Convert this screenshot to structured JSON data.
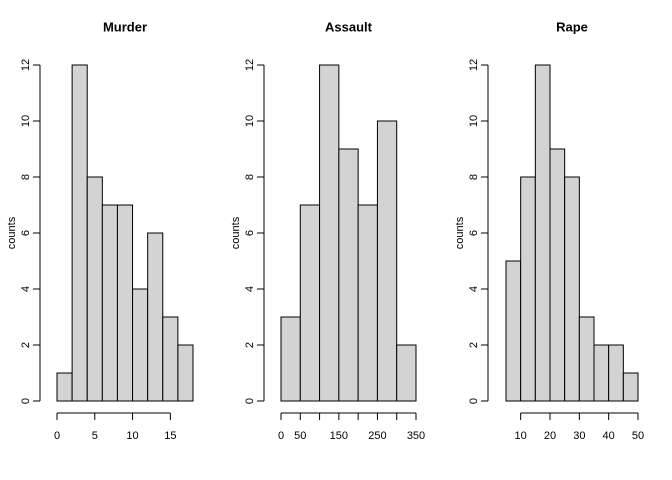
{
  "chart_data": [
    {
      "type": "histogram",
      "title": "Murder",
      "ylabel": "counts",
      "color": "#d3d3d3",
      "bins": [
        0,
        2,
        4,
        6,
        8,
        10,
        12,
        14,
        16,
        18
      ],
      "values": [
        1,
        12,
        8,
        7,
        7,
        4,
        6,
        3,
        2
      ],
      "xlim": [
        0,
        18
      ],
      "ylim": [
        0,
        12
      ],
      "xticks": [
        0,
        5,
        10,
        15
      ],
      "yticks": [
        0,
        2,
        4,
        6,
        8,
        10,
        12
      ]
    },
    {
      "type": "histogram",
      "title": "Assault",
      "ylabel": "counts",
      "color": "#d3d3d3",
      "bins": [
        0,
        50,
        100,
        150,
        200,
        250,
        300,
        350
      ],
      "values": [
        3,
        7,
        12,
        9,
        7,
        10,
        2
      ],
      "xlim": [
        0,
        350
      ],
      "ylim": [
        0,
        12
      ],
      "xticks": [
        0,
        50,
        150,
        250,
        350
      ],
      "xticks_unlabeled": [
        100,
        200,
        300
      ],
      "yticks": [
        0,
        2,
        4,
        6,
        8,
        10,
        12
      ]
    },
    {
      "type": "histogram",
      "title": "Rape",
      "ylabel": "counts",
      "color": "#d3d3d3",
      "bins": [
        5,
        10,
        15,
        20,
        25,
        30,
        35,
        40,
        45,
        50
      ],
      "values": [
        5,
        8,
        12,
        9,
        8,
        3,
        2,
        2,
        1
      ],
      "xlim": [
        5,
        50
      ],
      "ylim": [
        0,
        12
      ],
      "xticks": [
        10,
        20,
        30,
        40,
        50
      ],
      "yticks": [
        0,
        2,
        4,
        6,
        8,
        10,
        12
      ]
    }
  ]
}
